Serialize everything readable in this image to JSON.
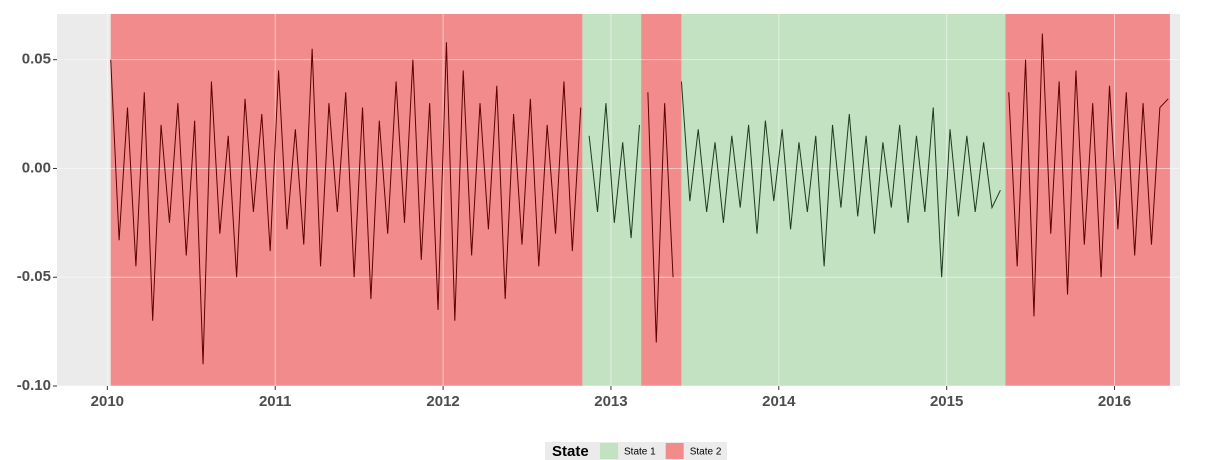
{
  "chart_data": {
    "type": "line",
    "legend_title": "State",
    "legend_position": "bottom",
    "grid": true,
    "xlim": [
      2009.7,
      2016.39
    ],
    "ylim": [
      -0.1,
      0.071
    ],
    "xticks": [
      2010,
      2011,
      2012,
      2013,
      2014,
      2015,
      2016
    ],
    "yticks": [
      {
        "value": 0.05,
        "label": "0.05"
      },
      {
        "value": 0,
        "label": "0.00"
      },
      {
        "value": -0.05,
        "label": "-0.05"
      },
      {
        "value": -0.1,
        "label": "-0.10"
      }
    ],
    "x": [
      2010.02,
      2010.07,
      2010.12,
      2010.17,
      2010.22,
      2010.27,
      2010.32,
      2010.37,
      2010.42,
      2010.47,
      2010.52,
      2010.57,
      2010.62,
      2010.67,
      2010.72,
      2010.77,
      2010.82,
      2010.87,
      2010.92,
      2010.97,
      2011.02,
      2011.07,
      2011.12,
      2011.17,
      2011.22,
      2011.27,
      2011.32,
      2011.37,
      2011.42,
      2011.47,
      2011.52,
      2011.57,
      2011.62,
      2011.67,
      2011.72,
      2011.77,
      2011.82,
      2011.87,
      2011.92,
      2011.97,
      2012.02,
      2012.07,
      2012.12,
      2012.17,
      2012.22,
      2012.27,
      2012.32,
      2012.37,
      2012.42,
      2012.47,
      2012.52,
      2012.57,
      2012.62,
      2012.67,
      2012.72,
      2012.77,
      2012.82,
      2012.87,
      2012.92,
      2012.97,
      2013.02,
      2013.07,
      2013.12,
      2013.17,
      2013.22,
      2013.27,
      2013.32,
      2013.37,
      2013.42,
      2013.47,
      2013.52,
      2013.57,
      2013.62,
      2013.67,
      2013.72,
      2013.77,
      2013.82,
      2013.87,
      2013.92,
      2013.97,
      2014.02,
      2014.07,
      2014.12,
      2014.17,
      2014.22,
      2014.27,
      2014.32,
      2014.37,
      2014.42,
      2014.47,
      2014.52,
      2014.57,
      2014.62,
      2014.67,
      2014.72,
      2014.77,
      2014.82,
      2014.87,
      2014.92,
      2014.97,
      2015.02,
      2015.07,
      2015.12,
      2015.17,
      2015.22,
      2015.27,
      2015.32,
      2015.37,
      2015.42,
      2015.47,
      2015.52,
      2015.57,
      2015.62,
      2015.67,
      2015.72,
      2015.77,
      2015.82,
      2015.87,
      2015.92,
      2015.97,
      2016.02,
      2016.07,
      2016.12,
      2016.17,
      2016.22,
      2016.27,
      2016.32
    ],
    "series": [
      {
        "name": "State 1",
        "color": "#c2e2c1",
        "line_color": "#1f3a1f",
        "values": [
          null,
          null,
          null,
          null,
          null,
          null,
          null,
          null,
          null,
          null,
          null,
          null,
          null,
          null,
          null,
          null,
          null,
          null,
          null,
          null,
          null,
          null,
          null,
          null,
          null,
          null,
          null,
          null,
          null,
          null,
          null,
          null,
          null,
          null,
          null,
          null,
          null,
          null,
          null,
          null,
          null,
          null,
          null,
          null,
          null,
          null,
          null,
          null,
          null,
          null,
          null,
          null,
          null,
          null,
          null,
          null,
          null,
          0.015,
          -0.02,
          0.03,
          -0.025,
          0.012,
          -0.032,
          0.02,
          null,
          null,
          null,
          null,
          0.04,
          -0.015,
          0.018,
          -0.02,
          0.012,
          -0.025,
          0.015,
          -0.018,
          0.02,
          -0.03,
          0.022,
          -0.015,
          0.018,
          -0.028,
          0.012,
          -0.02,
          0.015,
          -0.045,
          0.02,
          -0.018,
          0.025,
          -0.022,
          0.015,
          -0.03,
          0.012,
          -0.018,
          0.02,
          -0.025,
          0.015,
          -0.02,
          0.028,
          -0.05,
          0.018,
          -0.022,
          0.015,
          -0.02,
          0.012,
          -0.018,
          -0.01,
          null,
          null,
          null,
          null,
          null,
          null,
          null,
          null,
          null,
          null,
          null,
          null,
          null,
          null,
          null,
          null,
          null,
          null,
          null,
          null
        ]
      },
      {
        "name": "State 2",
        "color": "#f28c8c",
        "line_color": "#5c0000",
        "values": [
          0.05,
          -0.033,
          0.028,
          -0.045,
          0.035,
          -0.07,
          0.02,
          -0.025,
          0.03,
          -0.04,
          0.022,
          -0.09,
          0.04,
          -0.03,
          0.015,
          -0.05,
          0.032,
          -0.02,
          0.025,
          -0.038,
          0.045,
          -0.028,
          0.018,
          -0.035,
          0.055,
          -0.045,
          0.03,
          -0.02,
          0.035,
          -0.05,
          0.028,
          -0.06,
          0.022,
          -0.03,
          0.04,
          -0.025,
          0.05,
          -0.042,
          0.03,
          -0.065,
          0.058,
          -0.07,
          0.045,
          -0.04,
          0.03,
          -0.028,
          0.038,
          -0.06,
          0.025,
          -0.035,
          0.032,
          -0.045,
          0.02,
          -0.03,
          0.04,
          -0.038,
          0.028,
          null,
          null,
          null,
          null,
          null,
          null,
          null,
          0.035,
          -0.08,
          0.03,
          -0.05,
          null,
          null,
          null,
          null,
          null,
          null,
          null,
          null,
          null,
          null,
          null,
          null,
          null,
          null,
          null,
          null,
          null,
          null,
          null,
          null,
          null,
          null,
          null,
          null,
          null,
          null,
          null,
          null,
          null,
          null,
          null,
          null,
          null,
          null,
          null,
          null,
          null,
          null,
          null,
          0.035,
          -0.045,
          0.05,
          -0.068,
          0.062,
          -0.03,
          0.04,
          -0.058,
          0.045,
          -0.035,
          0.03,
          -0.05,
          0.038,
          -0.028,
          0.035,
          -0.04,
          0.03,
          -0.035,
          0.028,
          0.032
        ]
      }
    ],
    "regions": [
      {
        "start": 2010.02,
        "end": 2012.83,
        "series": 1
      },
      {
        "start": 2012.83,
        "end": 2013.18,
        "series": 0
      },
      {
        "start": 2013.18,
        "end": 2013.42,
        "series": 1
      },
      {
        "start": 2013.42,
        "end": 2015.35,
        "series": 0
      },
      {
        "start": 2015.35,
        "end": 2016.33,
        "series": 1
      }
    ]
  }
}
